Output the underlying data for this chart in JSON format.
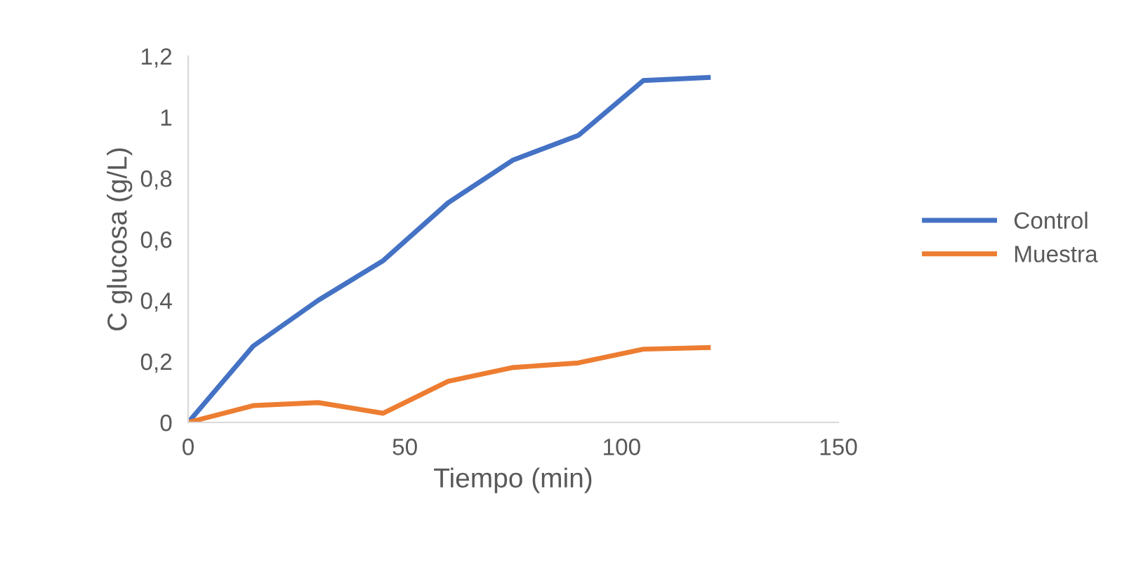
{
  "chart_data": {
    "type": "line",
    "xlabel": "Tiempo (min)",
    "ylabel": "C glucosa (g/L)",
    "x": [
      0,
      15,
      30,
      45,
      60,
      75,
      90,
      105,
      120
    ],
    "series": [
      {
        "name": "Control",
        "color": "#4472c4",
        "values": [
          0,
          0.25,
          0.4,
          0.53,
          0.72,
          0.86,
          0.94,
          1.12,
          1.13
        ]
      },
      {
        "name": "Muestra",
        "color": "#ed7d31",
        "values": [
          0,
          0.055,
          0.065,
          0.03,
          0.135,
          0.18,
          0.195,
          0.24,
          0.245
        ]
      }
    ],
    "xlim": [
      0,
      150
    ],
    "xticks": [
      0,
      50,
      100,
      150
    ],
    "ylim": [
      0,
      1.2
    ],
    "yticks": [
      0,
      {
        "value": 0.2,
        "label": "0,2"
      },
      {
        "value": 0.4,
        "label": "0,4"
      },
      {
        "value": 0.6,
        "label": "0,6"
      },
      {
        "value": 0.8,
        "label": "0,8"
      },
      1,
      {
        "value": 1.2,
        "label": "1,2"
      }
    ],
    "grid": false,
    "legend": "right",
    "marker": "none",
    "line_style": "solid"
  }
}
